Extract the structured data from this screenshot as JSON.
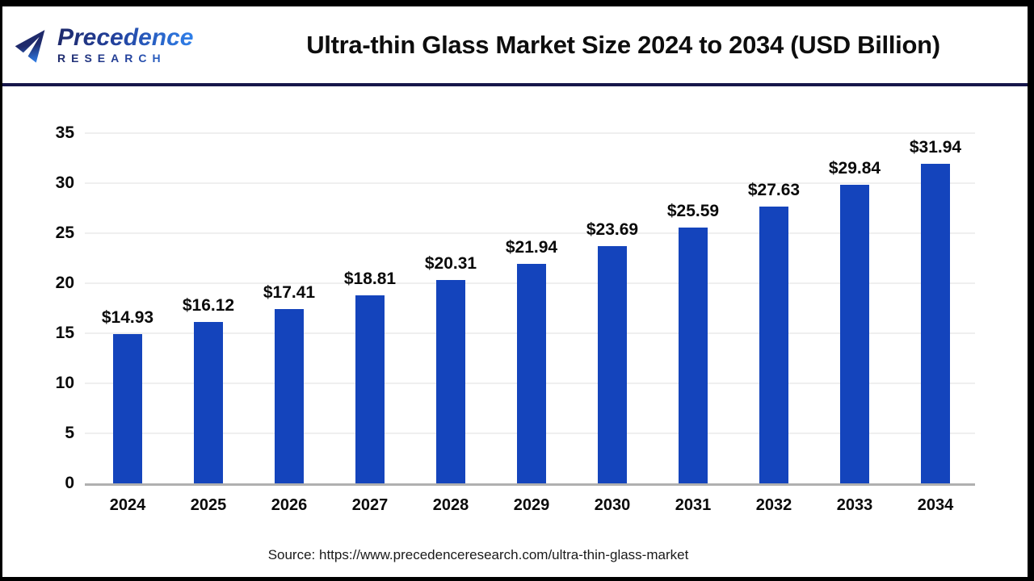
{
  "header": {
    "brand_line1": "Precedence",
    "brand_line2": "RESEARCH"
  },
  "chart_data": {
    "type": "bar",
    "title": "Ultra-thin Glass Market Size 2024 to 2034 (USD Billion)",
    "categories": [
      "2024",
      "2025",
      "2026",
      "2027",
      "2028",
      "2029",
      "2030",
      "2031",
      "2032",
      "2033",
      "2034"
    ],
    "values": [
      14.93,
      16.12,
      17.41,
      18.81,
      20.31,
      21.94,
      23.69,
      25.59,
      27.63,
      29.84,
      31.94
    ],
    "value_labels": [
      "$14.93",
      "$16.12",
      "$17.41",
      "$18.81",
      "$20.31",
      "$21.94",
      "$23.69",
      "$25.59",
      "$27.63",
      "$29.84",
      "$31.94"
    ],
    "unit": "USD Billion",
    "xlabel": "",
    "ylabel": "",
    "ylim": [
      0,
      35
    ],
    "ytick_step": 5,
    "yticks": [
      0,
      5,
      10,
      15,
      20,
      25,
      30,
      35
    ],
    "grid": "horizontal",
    "legend_position": "none",
    "bar_color": "#1444BC"
  },
  "footer": {
    "source": "Source: https://www.precedenceresearch.com/ultra-thin-glass-market"
  },
  "colors": {
    "frame": "#000000",
    "divider": "#16164A",
    "gridline": "#EFEFEF",
    "axis_line": "#B0B0B0",
    "title_text": "#0D0D0D",
    "label_text": "#0A0A0A",
    "brand_gradient_start": "#1F2A6B",
    "brand_gradient_end": "#2F80EA"
  }
}
